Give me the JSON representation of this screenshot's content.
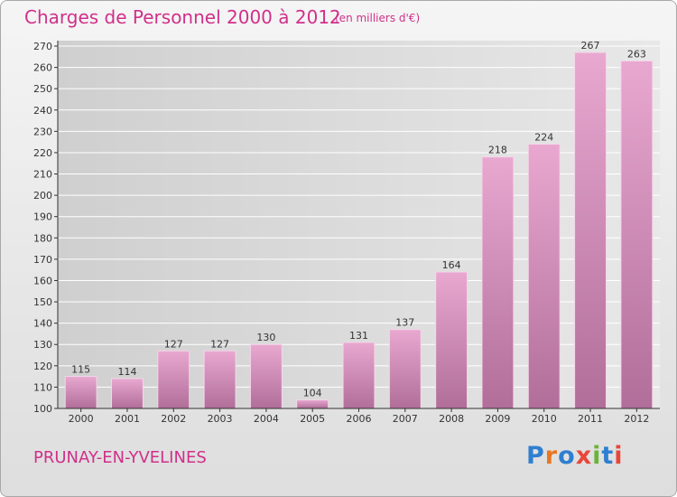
{
  "header": {
    "title": "Charges de Personnel 2000 à 2012",
    "subtitle": "(en milliers d'€)"
  },
  "footer": {
    "commune": "PRUNAY-EN-YVELINES",
    "logo": {
      "letters": [
        "P",
        "r",
        "o",
        "x",
        "i",
        "t",
        "i"
      ],
      "colors": [
        "#2e7fd0",
        "#e87722",
        "#2e7fd0",
        "#e8463a",
        "#6bb33a",
        "#2e7fd0",
        "#e8463a"
      ]
    }
  },
  "chart_data": {
    "type": "bar",
    "categories": [
      "2000",
      "2001",
      "2002",
      "2003",
      "2004",
      "2005",
      "2006",
      "2007",
      "2008",
      "2009",
      "2010",
      "2011",
      "2012"
    ],
    "values": [
      115,
      114,
      127,
      127,
      130,
      104,
      131,
      137,
      164,
      218,
      224,
      267,
      263
    ],
    "data_labels": [
      "115",
      "114",
      "127",
      "127",
      "130",
      "104",
      "131",
      "137",
      "164",
      "218",
      "224",
      "267",
      "263"
    ],
    "title": "Charges de Personnel 2000 à 2012",
    "xlabel": "",
    "ylabel": "",
    "ylim": [
      100,
      270
    ],
    "yticks": [
      100,
      110,
      120,
      130,
      140,
      150,
      160,
      170,
      180,
      190,
      200,
      210,
      220,
      230,
      240,
      250,
      260,
      270
    ],
    "grid": true,
    "colors": {
      "bar_light": "#e9a8d0",
      "bar_dark": "#b06e99",
      "axis": "#333333",
      "grid": "#ffffff",
      "plot_bg": "#d9d9d9"
    }
  }
}
